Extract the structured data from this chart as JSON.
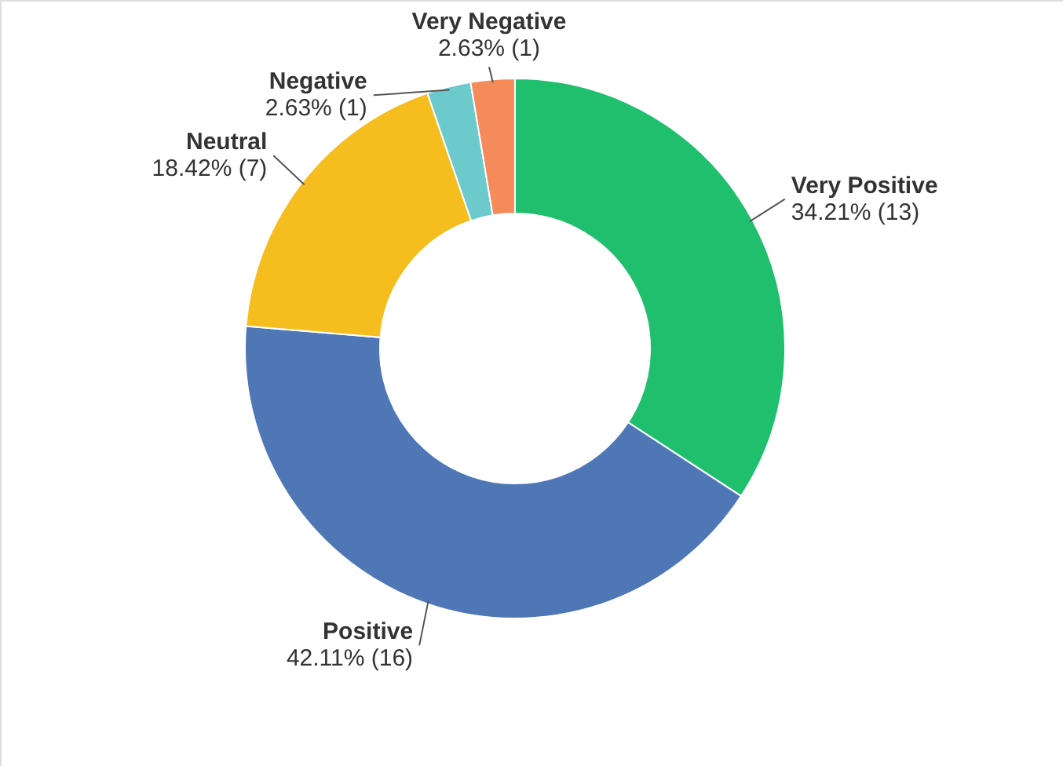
{
  "chart_data": {
    "type": "donut",
    "categories": [
      "Very Positive",
      "Positive",
      "Neutral",
      "Negative",
      "Very Negative"
    ],
    "values": [
      13,
      16,
      7,
      1,
      1
    ],
    "colors": [
      "#1fbf6e",
      "#4f77b6",
      "#f5bd1e",
      "#6ccacc",
      "#f58a5a"
    ],
    "value_labels": [
      "34.21% (13)",
      "42.11% (16)",
      "18.42% (7)",
      "2.63% (1)",
      "2.63% (1)"
    ]
  }
}
